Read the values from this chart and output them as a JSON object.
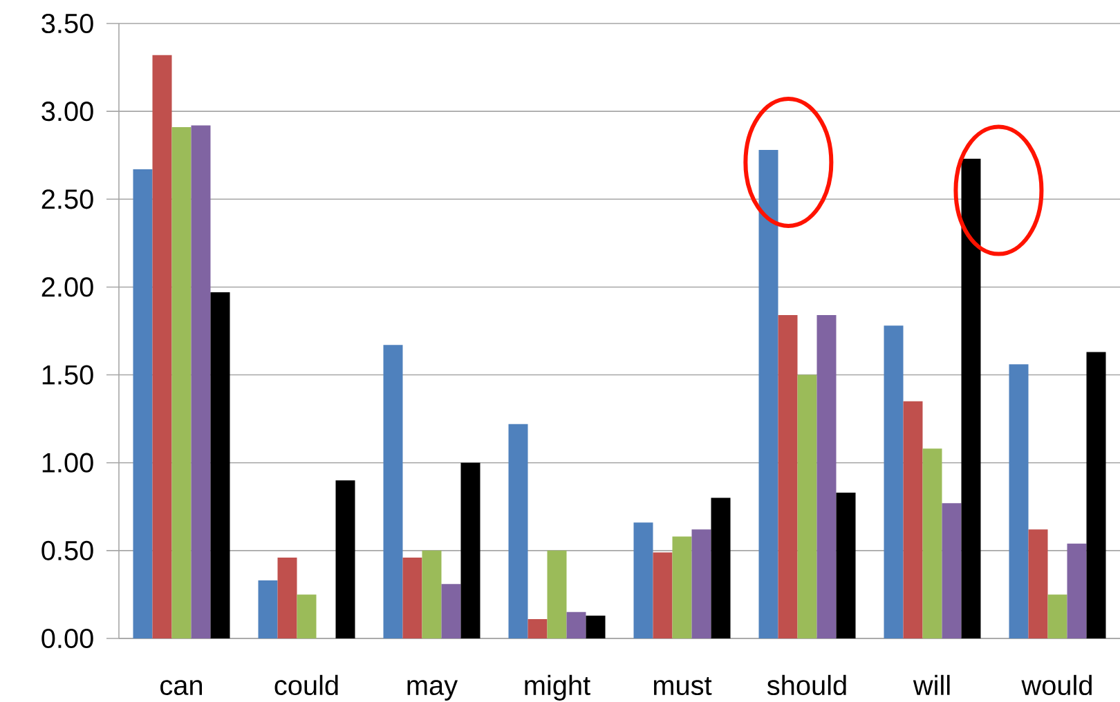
{
  "chart_data": {
    "type": "bar",
    "categories": [
      "can",
      "could",
      "may",
      "might",
      "must",
      "should",
      "will",
      "would"
    ],
    "series": [
      {
        "color": "#4f81bd",
        "values": [
          2.67,
          0.33,
          1.67,
          1.22,
          0.66,
          2.78,
          1.78,
          1.56
        ]
      },
      {
        "color": "#c0504d",
        "values": [
          3.32,
          0.46,
          0.46,
          0.11,
          0.49,
          1.84,
          1.35,
          0.62
        ]
      },
      {
        "color": "#9bbb59",
        "values": [
          2.91,
          0.25,
          0.5,
          0.5,
          0.58,
          1.5,
          1.08,
          0.25
        ]
      },
      {
        "color": "#8064a2",
        "values": [
          2.92,
          0.0,
          0.31,
          0.15,
          0.62,
          1.84,
          0.77,
          0.54
        ]
      },
      {
        "color": "#000000",
        "values": [
          1.97,
          0.9,
          1.0,
          0.13,
          0.8,
          0.83,
          2.73,
          1.63
        ]
      }
    ],
    "ylim": [
      0,
      3.5
    ],
    "yticks": [
      {
        "value": 0,
        "label": "0.00"
      },
      {
        "value": 0.5,
        "label": "0.50"
      },
      {
        "value": 1.0,
        "label": "1.00"
      },
      {
        "value": 1.5,
        "label": "1.50"
      },
      {
        "value": 2.0,
        "label": "2.00"
      },
      {
        "value": 2.5,
        "label": "2.50"
      },
      {
        "value": 3.0,
        "label": "3.00"
      },
      {
        "value": 3.5,
        "label": "3.50"
      }
    ],
    "grid": "y"
  }
}
